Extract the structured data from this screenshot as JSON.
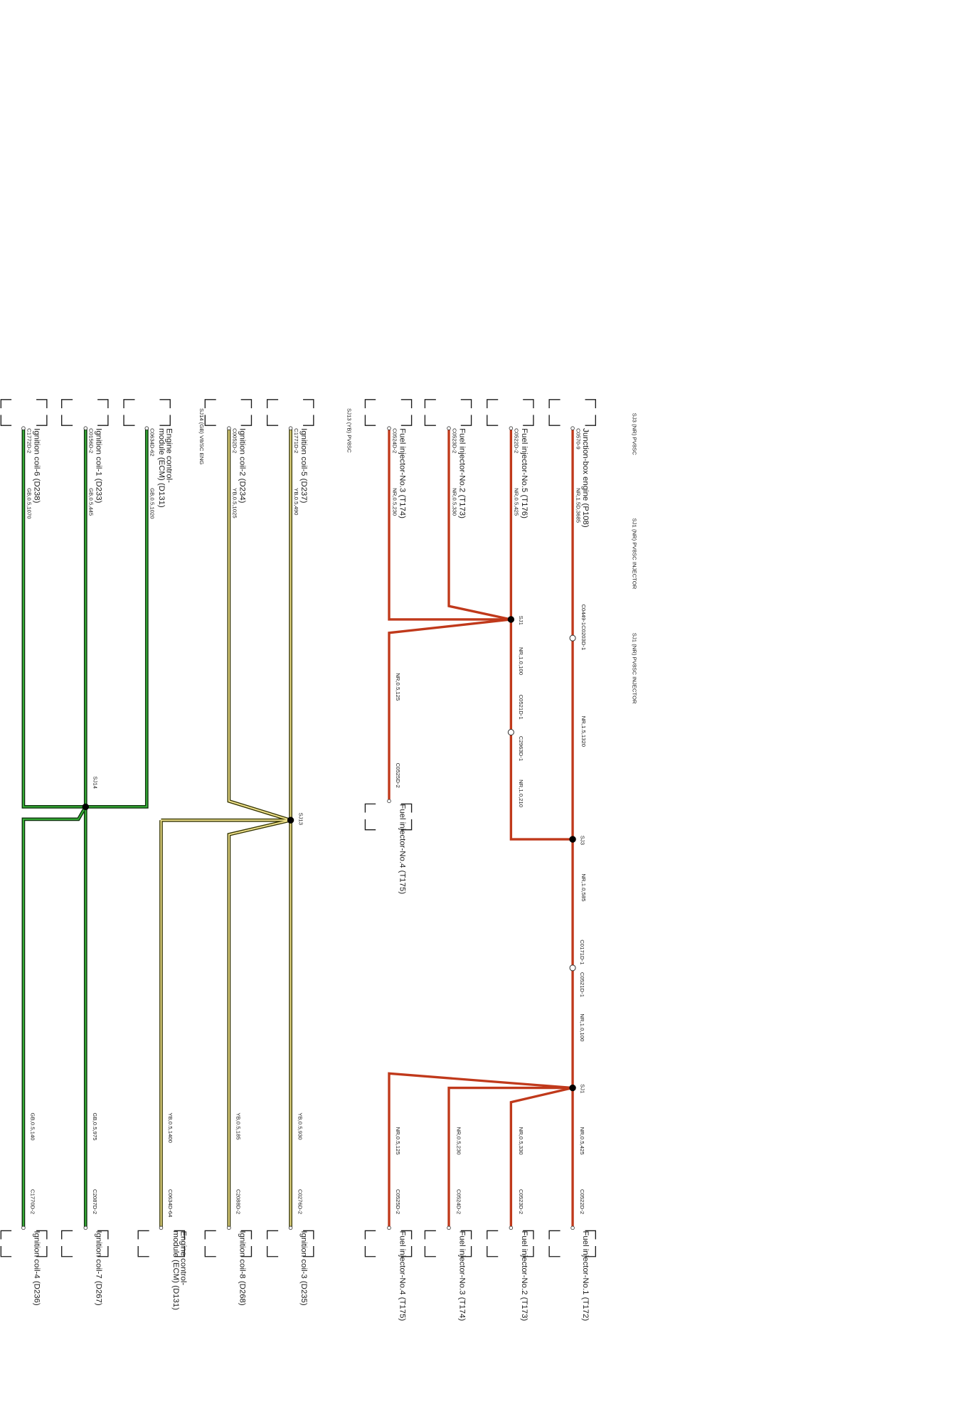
{
  "header": {
    "right_col_titles": [
      "SJ3 (NR) PV8SC",
      "SJ1 (NR) PV8SC INJECTOR",
      "SJ1 (NR) PV8SC INJECTOR"
    ],
    "sj13_title": "SJ13 (YB) PV8SC",
    "sj14_title": "SJ14 (GB) V8/SC ENG"
  },
  "colors": {
    "nr_wire": "#c0391b",
    "yb_wire_outer": "#333300",
    "yb_wire_inner": "#f0e28c",
    "gb_wire_outer": "#0b2e0b",
    "gb_wire_inner": "#37b137"
  },
  "components": [
    {
      "id": "jb_p108",
      "label": "Junction-box engine (P108)"
    },
    {
      "id": "fi5_t176",
      "label": "Fuel injector-No.5 (T176)"
    },
    {
      "id": "fi2_t173_top",
      "label": "Fuel injector-No.2 (T173)"
    },
    {
      "id": "fi3_t174_top",
      "label": "Fuel injector-No.3 (T174)"
    },
    {
      "id": "fi4_t175_mid",
      "label": "Fuel injector-No.4 (T175)"
    },
    {
      "id": "ic5_d237",
      "label": "Ignition coil-5 (D237)"
    },
    {
      "id": "ic2_d234",
      "label": "Ignition coil-2 (D234)"
    },
    {
      "id": "ecm_top",
      "label": "Engine control-module (ECM) (D131)"
    },
    {
      "id": "ic1_d233",
      "label": "Ignition coil-1 (D233)"
    },
    {
      "id": "ic6_d238",
      "label": "Ignition coil-6 (D238)"
    },
    {
      "id": "fi1_t172",
      "label": "Fuel injector-No.1 (T172)"
    },
    {
      "id": "fi2_t173_bot",
      "label": "Fuel injector-No.2 (T173)"
    },
    {
      "id": "fi3_t174_bot",
      "label": "Fuel injector-No.3 (T174)"
    },
    {
      "id": "fi4_t175_bot",
      "label": "Fuel injector-No.4 (T175)"
    },
    {
      "id": "ic3_d235",
      "label": "Ignition coil-3 (D235)"
    },
    {
      "id": "ic8_d268",
      "label": "Ignition coil-8 (D268)"
    },
    {
      "id": "ecm_bot",
      "label": "Engine control-module (ECM) (D131)"
    },
    {
      "id": "ic7_d267",
      "label": "Ignition coil-7 (D267)"
    },
    {
      "id": "ic4_d236",
      "label": "Ignition coil-4 (D236)"
    }
  ],
  "connectors": [
    "C0570-9",
    "C0522D-2",
    "C0523D-2",
    "C0524D-2",
    "C1771D-2",
    "C0052D-2",
    "C0634D-62",
    "C0156D-2",
    "C1772D-2",
    "C0449-1C0203D-1",
    "C0521D-1",
    "C2963D-1",
    "C0525D-2",
    "C0171D-1",
    "C0521D-1",
    "C0522D-2",
    "C0523D-2",
    "C0524D-2",
    "C0525D-2",
    "C0276D-2",
    "C2088D-2",
    "C0634D-64",
    "C2087D-2",
    "C1770D-2"
  ],
  "wires": [
    "NR,1.5D,3685",
    "NR,0.5,425",
    "NR,0.5,330",
    "NR,0.5,230",
    "YB,0.5,490",
    "YB,0.5,1025",
    "GB,0.5,1020",
    "GB,0.5,445",
    "GB,0.5,1070",
    "NR,1.0,100",
    "NR,0.5,125",
    "NR,1.5,1320",
    "NR,1.0,210",
    "NR,1.0,585",
    "NR,1.0,100",
    "NR,0.5,425",
    "NR,0.5,330",
    "NR,0.5,230",
    "NR,0.5,125",
    "YB,0.5,930",
    "YB,0.5,185",
    "YB,0.5,1400",
    "GB,0.5,975",
    "GB,0.5,140"
  ],
  "splices": [
    "SJ1",
    "SJ3",
    "SJ1",
    "SJ13",
    "SJ14"
  ]
}
